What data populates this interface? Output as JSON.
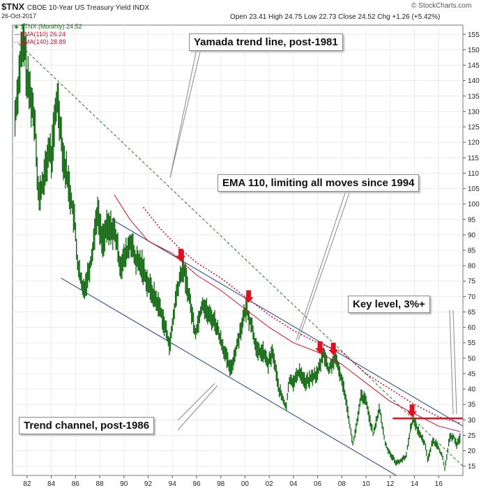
{
  "header": {
    "symbol": "$TNX",
    "name": "CBOE 10-Year US Treasury Yield INDX",
    "date": "26-Oct-2017",
    "ohlc": "Open 23.41  High 24.75  Low 22.73  Close 24.52  Chg +1.26 (+5.42%)",
    "brand": "© StockCharts.com"
  },
  "legend": [
    {
      "label": "$TNX (Monthly) 24.52",
      "color": "#1a6e1a"
    },
    {
      "label": "EMA(110) 26.24",
      "color": "#d0102a"
    },
    {
      "label": "EMA(140) 28.89",
      "color": "#d0102a"
    }
  ],
  "annotations": {
    "yamada": "Yamada trend line, post-1981",
    "ema": "EMA 110, limiting all moves since 1994",
    "key": "Key level, 3%+",
    "channel": "Trend channel, post-1986"
  },
  "chart_data": {
    "type": "line",
    "x_ticks": [
      "82",
      "84",
      "86",
      "88",
      "90",
      "92",
      "94",
      "96",
      "98",
      "00",
      "02",
      "04",
      "06",
      "08",
      "10",
      "12",
      "14",
      "16"
    ],
    "y_ticks": [
      15,
      20,
      25,
      30,
      35,
      40,
      45,
      50,
      55,
      60,
      65,
      70,
      75,
      80,
      85,
      90,
      95,
      100,
      105,
      110,
      115,
      120,
      125,
      130,
      135,
      140,
      145,
      150,
      155
    ],
    "ylim": [
      12,
      158
    ],
    "xlim": [
      1980.8,
      2018.0
    ],
    "series": [
      {
        "name": "$TNX (Monthly)",
        "color": "#1a6e1a",
        "points": [
          [
            1981.0,
            128
          ],
          [
            1981.5,
            148
          ],
          [
            1981.8,
            152
          ],
          [
            1982.0,
            140
          ],
          [
            1982.3,
            135
          ],
          [
            1982.7,
            125
          ],
          [
            1982.9,
            105
          ],
          [
            1983.0,
            102
          ],
          [
            1983.5,
            110
          ],
          [
            1983.8,
            118
          ],
          [
            1984.0,
            115
          ],
          [
            1984.5,
            135
          ],
          [
            1984.7,
            128
          ],
          [
            1985.0,
            115
          ],
          [
            1985.5,
            105
          ],
          [
            1985.9,
            95
          ],
          [
            1986.2,
            80
          ],
          [
            1986.6,
            72
          ],
          [
            1986.9,
            75
          ],
          [
            1987.3,
            82
          ],
          [
            1987.8,
            98
          ],
          [
            1988.2,
            88
          ],
          [
            1988.6,
            92
          ],
          [
            1989.0,
            92
          ],
          [
            1989.3,
            90
          ],
          [
            1989.7,
            80
          ],
          [
            1990.0,
            82
          ],
          [
            1990.6,
            88
          ],
          [
            1990.9,
            82
          ],
          [
            1991.5,
            80
          ],
          [
            1992.0,
            74
          ],
          [
            1992.5,
            70
          ],
          [
            1993.0,
            66
          ],
          [
            1993.8,
            54
          ],
          [
            1994.3,
            70
          ],
          [
            1994.9,
            80
          ],
          [
            1995.3,
            72
          ],
          [
            1995.9,
            58
          ],
          [
            1996.5,
            68
          ],
          [
            1997.0,
            64
          ],
          [
            1997.5,
            62
          ],
          [
            1998.0,
            56
          ],
          [
            1998.8,
            46
          ],
          [
            1999.2,
            52
          ],
          [
            1999.8,
            62
          ],
          [
            2000.1,
            66
          ],
          [
            2000.6,
            60
          ],
          [
            2001.0,
            52
          ],
          [
            2001.5,
            52
          ],
          [
            2001.9,
            48
          ],
          [
            2002.3,
            52
          ],
          [
            2002.8,
            40
          ],
          [
            2003.4,
            34
          ],
          [
            2003.7,
            44
          ],
          [
            2004.0,
            42
          ],
          [
            2004.5,
            46
          ],
          [
            2005.0,
            42
          ],
          [
            2005.6,
            44
          ],
          [
            2006.0,
            45
          ],
          [
            2006.5,
            52
          ],
          [
            2006.9,
            46
          ],
          [
            2007.4,
            50
          ],
          [
            2007.8,
            46
          ],
          [
            2008.3,
            38
          ],
          [
            2008.9,
            22
          ],
          [
            2009.3,
            30
          ],
          [
            2009.6,
            38
          ],
          [
            2010.0,
            36
          ],
          [
            2010.6,
            25
          ],
          [
            2011.1,
            34
          ],
          [
            2011.6,
            22
          ],
          [
            2012.0,
            19
          ],
          [
            2012.5,
            16
          ],
          [
            2012.9,
            17
          ],
          [
            2013.3,
            18
          ],
          [
            2013.7,
            28
          ],
          [
            2013.9,
            30
          ],
          [
            2014.5,
            25
          ],
          [
            2014.9,
            22
          ],
          [
            2015.1,
            17
          ],
          [
            2015.5,
            23
          ],
          [
            2015.9,
            22
          ],
          [
            2016.3,
            18
          ],
          [
            2016.5,
            14
          ],
          [
            2016.9,
            24
          ],
          [
            2017.2,
            25
          ],
          [
            2017.5,
            22
          ],
          [
            2017.8,
            24.5
          ]
        ]
      },
      {
        "name": "EMA(110)",
        "color": "#d0102a",
        "dash": false,
        "points": [
          [
            1989.2,
            103
          ],
          [
            1990.5,
            95
          ],
          [
            1992.0,
            88
          ],
          [
            1994.0,
            84
          ],
          [
            1996.0,
            77
          ],
          [
            1998.0,
            72
          ],
          [
            2000.0,
            66
          ],
          [
            2002.0,
            60
          ],
          [
            2004.0,
            55
          ],
          [
            2006.0,
            52
          ],
          [
            2008.0,
            48
          ],
          [
            2010.0,
            42
          ],
          [
            2012.0,
            36
          ],
          [
            2014.0,
            32
          ],
          [
            2016.0,
            28
          ],
          [
            2017.8,
            26.2
          ]
        ]
      },
      {
        "name": "EMA(140)",
        "color": "#d0102a",
        "dash": true,
        "points": [
          [
            1991.6,
            99
          ],
          [
            1993.0,
            92
          ],
          [
            1994.5,
            86
          ],
          [
            1996.0,
            81
          ],
          [
            1998.0,
            76
          ],
          [
            2000.0,
            70
          ],
          [
            2002.0,
            64
          ],
          [
            2004.0,
            59
          ],
          [
            2006.0,
            55
          ],
          [
            2008.0,
            52
          ],
          [
            2010.0,
            45
          ],
          [
            2012.0,
            40
          ],
          [
            2014.0,
            35
          ],
          [
            2016.0,
            31
          ],
          [
            2017.8,
            28.9
          ]
        ]
      }
    ],
    "trendlines": [
      {
        "name": "Yamada",
        "color": "#3a7a3a",
        "dash": true,
        "from": [
          1981.3,
          152
        ],
        "to": [
          2018.0,
          15
        ]
      },
      {
        "name": "Channel upper",
        "color": "#2d4f8a",
        "from": [
          1989.0,
          95
        ],
        "to": [
          2018.0,
          28
        ]
      },
      {
        "name": "Channel lower",
        "color": "#2d4f8a",
        "from": [
          1984.8,
          76
        ],
        "to": [
          2012.5,
          12
        ]
      },
      {
        "name": "Key level 3%+",
        "color": "#e01020",
        "from": [
          2012.2,
          30.5
        ],
        "to": [
          2018.0,
          30.5
        ],
        "width": 2.5
      }
    ],
    "arrows": [
      [
        1994.7,
        81
      ],
      [
        2000.3,
        67.5
      ],
      [
        2006.2,
        51
      ],
      [
        2007.3,
        50.5
      ],
      [
        2013.8,
        30.5
      ]
    ]
  }
}
